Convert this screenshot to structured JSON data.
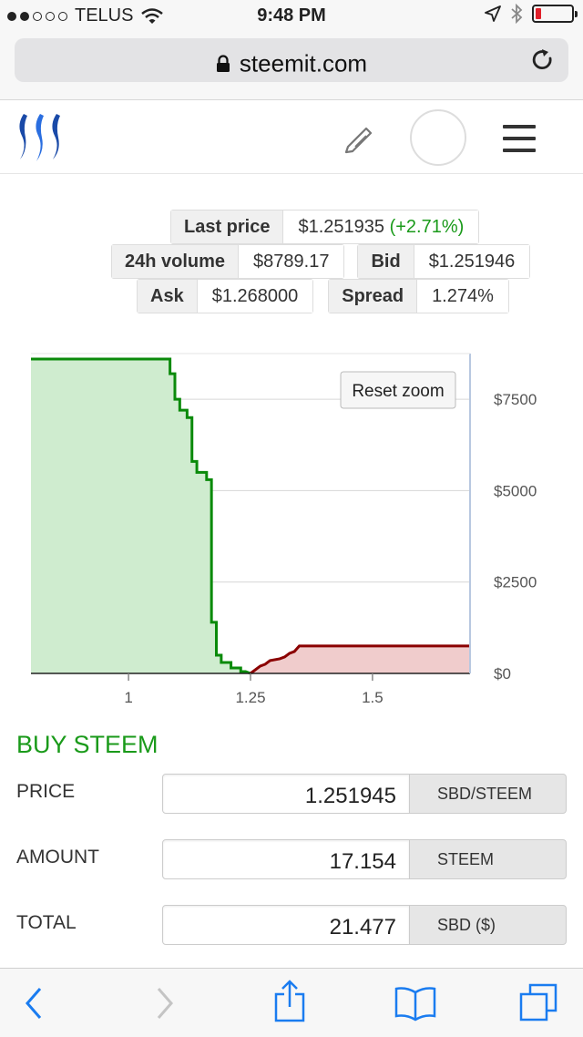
{
  "status_bar": {
    "carrier": "TELUS",
    "time": "9:48 PM"
  },
  "browser": {
    "url": "steemit.com"
  },
  "ticker": {
    "last_price": {
      "label": "Last price",
      "value": "$1.251935",
      "change": "(+2.71%)"
    },
    "volume_24h": {
      "label": "24h volume",
      "value": "$8789.17"
    },
    "bid": {
      "label": "Bid",
      "value": "$1.251946"
    },
    "ask": {
      "label": "Ask",
      "value": "$1.268000"
    },
    "spread": {
      "label": "Spread",
      "value": "1.274%"
    }
  },
  "chart_data": {
    "type": "area",
    "title": "",
    "xlabel": "",
    "ylabel": "",
    "xlim": [
      0.8,
      1.7
    ],
    "ylim": [
      0,
      8750
    ],
    "x_ticks": [
      "1",
      "1.25",
      "1.5"
    ],
    "y_ticks": [
      "$0",
      "$2500",
      "$5000",
      "$7500"
    ],
    "grid": true,
    "reset_zoom_label": "Reset zoom",
    "series": [
      {
        "color": "#0a8a0a",
        "fill": "#cfeccf",
        "points": [
          [
            0.8,
            8600
          ],
          [
            1.085,
            8600
          ],
          [
            1.085,
            8200
          ],
          [
            1.095,
            8200
          ],
          [
            1.095,
            7500
          ],
          [
            1.105,
            7500
          ],
          [
            1.105,
            7200
          ],
          [
            1.12,
            7200
          ],
          [
            1.12,
            7000
          ],
          [
            1.13,
            7000
          ],
          [
            1.13,
            5800
          ],
          [
            1.14,
            5800
          ],
          [
            1.14,
            5500
          ],
          [
            1.16,
            5500
          ],
          [
            1.16,
            5300
          ],
          [
            1.17,
            5300
          ],
          [
            1.17,
            1400
          ],
          [
            1.18,
            1400
          ],
          [
            1.18,
            500
          ],
          [
            1.19,
            500
          ],
          [
            1.19,
            300
          ],
          [
            1.21,
            300
          ],
          [
            1.21,
            150
          ],
          [
            1.23,
            150
          ],
          [
            1.23,
            50
          ],
          [
            1.24,
            50
          ],
          [
            1.25,
            0
          ]
        ]
      },
      {
        "color": "#8b0000",
        "fill": "#f0cccc",
        "points": [
          [
            1.25,
            0
          ],
          [
            1.27,
            200
          ],
          [
            1.28,
            250
          ],
          [
            1.29,
            350
          ],
          [
            1.31,
            400
          ],
          [
            1.32,
            450
          ],
          [
            1.33,
            550
          ],
          [
            1.34,
            600
          ],
          [
            1.35,
            750
          ],
          [
            1.7,
            750
          ]
        ]
      }
    ]
  },
  "buy_form": {
    "title": "BUY STEEM",
    "price": {
      "label": "PRICE",
      "value": "1.251945",
      "unit": "SBD/STEEM"
    },
    "amount": {
      "label": "AMOUNT",
      "value": "17.154",
      "unit": "STEEM"
    },
    "total": {
      "label": "TOTAL",
      "value": "21.477",
      "unit": "SBD ($)"
    }
  },
  "colors": {
    "steem_green": "#1a9a1a",
    "ios_blue": "#1a7cf0"
  },
  "icons": [
    "wifi-icon",
    "location-icon",
    "bluetooth-icon",
    "battery-icon",
    "lock-icon",
    "reload-icon",
    "steemit-logo",
    "pencil-icon",
    "avatar",
    "menu-icon",
    "back-icon",
    "forward-icon",
    "share-icon",
    "bookmarks-icon",
    "tabs-icon"
  ]
}
